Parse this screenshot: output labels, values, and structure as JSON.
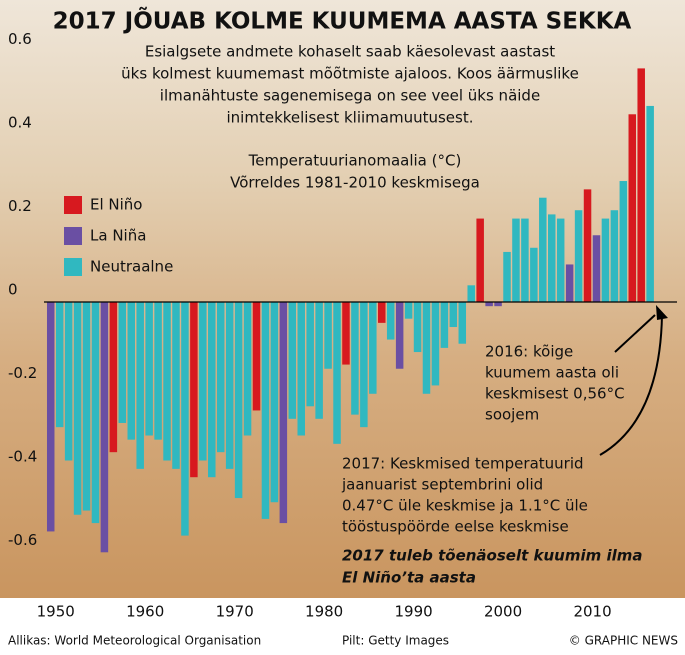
{
  "chart_data": {
    "type": "bar",
    "title": "2017 JÕUAB KOLME KUUMEMA AASTA SEKKA",
    "subtitle": [
      "Esialgsete andmete kohaselt saab käesolevast aastast",
      "üks kolmest kuumemast mõõtmiste ajaloos. Koos äärmuslike",
      "ilmanähtuste sagenemisega on see veel üks näide",
      "inimtekkelisest kliimamuutusest."
    ],
    "y_label": [
      "Temperatuurianomaalia (°C)",
      "Võrreldes 1981-2010 keskmisega"
    ],
    "annotations": {
      "y2016": [
        "2016: kõige",
        "kuumem aasta oli",
        "keskmisest 0,56°C",
        "soojem"
      ],
      "y2017": [
        "2017: Keskmised temperatuurid",
        "jaanuarist septembrini olid",
        "0.47°C üle keskmise ja 1.1°C üle",
        "tööstuspöörde eelse keskmise"
      ],
      "note": [
        "2017 tuleb tõenäoselt kuumim ilma",
        "El Niño’ta aasta"
      ]
    },
    "source": "Allikas: World Meteorological Organisation",
    "photo_credit": "Pilt: Getty Images",
    "copyright": "© GRAPHIC NEWS",
    "x": [
      1950,
      1951,
      1952,
      1953,
      1954,
      1955,
      1956,
      1957,
      1958,
      1959,
      1960,
      1961,
      1962,
      1963,
      1964,
      1965,
      1966,
      1967,
      1968,
      1969,
      1970,
      1971,
      1972,
      1973,
      1974,
      1975,
      1976,
      1977,
      1978,
      1979,
      1980,
      1981,
      1982,
      1983,
      1984,
      1985,
      1986,
      1987,
      1988,
      1989,
      1990,
      1991,
      1992,
      1993,
      1994,
      1995,
      1996,
      1997,
      1998,
      1999,
      2000,
      2001,
      2002,
      2003,
      2004,
      2005,
      2006,
      2007,
      2008,
      2009,
      2010,
      2011,
      2012,
      2013,
      2014,
      2015,
      2016,
      2017
    ],
    "series": [
      {
        "name": "El Niño",
        "color": "#d7191f",
        "values": [
          null,
          null,
          null,
          null,
          null,
          null,
          null,
          -0.36,
          null,
          null,
          null,
          null,
          null,
          null,
          null,
          null,
          -0.42,
          null,
          null,
          null,
          null,
          null,
          null,
          -0.26,
          null,
          null,
          null,
          null,
          null,
          null,
          null,
          null,
          null,
          -0.15,
          null,
          null,
          null,
          -0.05,
          null,
          null,
          null,
          null,
          null,
          null,
          null,
          null,
          null,
          null,
          0.2,
          null,
          null,
          null,
          null,
          null,
          null,
          null,
          null,
          null,
          null,
          null,
          0.27,
          null,
          null,
          null,
          null,
          0.45,
          0.56,
          null
        ]
      },
      {
        "name": "La Niña",
        "color": "#6a4fa3",
        "values": [
          -0.55,
          null,
          null,
          null,
          null,
          null,
          -0.6,
          null,
          null,
          null,
          null,
          null,
          null,
          null,
          null,
          null,
          null,
          null,
          null,
          null,
          null,
          null,
          null,
          null,
          null,
          null,
          -0.53,
          null,
          null,
          null,
          null,
          null,
          null,
          null,
          null,
          null,
          null,
          null,
          null,
          -0.16,
          null,
          null,
          null,
          null,
          null,
          null,
          null,
          null,
          null,
          -0.01,
          -0.01,
          null,
          null,
          null,
          null,
          null,
          null,
          null,
          0.09,
          null,
          null,
          0.16,
          null,
          null,
          null,
          null,
          null,
          null
        ]
      },
      {
        "name": "Neutraalne",
        "color": "#30b8c0",
        "values": [
          null,
          -0.3,
          -0.38,
          -0.51,
          -0.5,
          -0.53,
          null,
          null,
          -0.29,
          -0.33,
          -0.4,
          -0.32,
          -0.33,
          -0.38,
          -0.4,
          -0.56,
          null,
          -0.38,
          -0.42,
          -0.36,
          -0.4,
          -0.47,
          -0.32,
          null,
          -0.52,
          -0.48,
          null,
          -0.28,
          -0.32,
          -0.25,
          -0.28,
          -0.16,
          -0.34,
          null,
          -0.27,
          -0.3,
          -0.22,
          null,
          -0.09,
          null,
          -0.04,
          -0.12,
          -0.22,
          -0.2,
          -0.11,
          -0.06,
          -0.1,
          0.04,
          null,
          null,
          null,
          0.12,
          0.2,
          0.2,
          0.13,
          0.25,
          0.21,
          0.2,
          null,
          0.22,
          null,
          null,
          0.2,
          0.22,
          0.29,
          null,
          null,
          0.47
        ]
      }
    ],
    "xlim": [
      1945,
      2020
    ],
    "xticks": [
      1950,
      1960,
      1970,
      1980,
      1990,
      2000,
      2010
    ],
    "ylim": [
      -0.7,
      0.7
    ],
    "yticks": [
      0.6,
      0.4,
      0.2,
      0,
      -0.2,
      -0.4,
      -0.6
    ],
    "grid": false
  }
}
